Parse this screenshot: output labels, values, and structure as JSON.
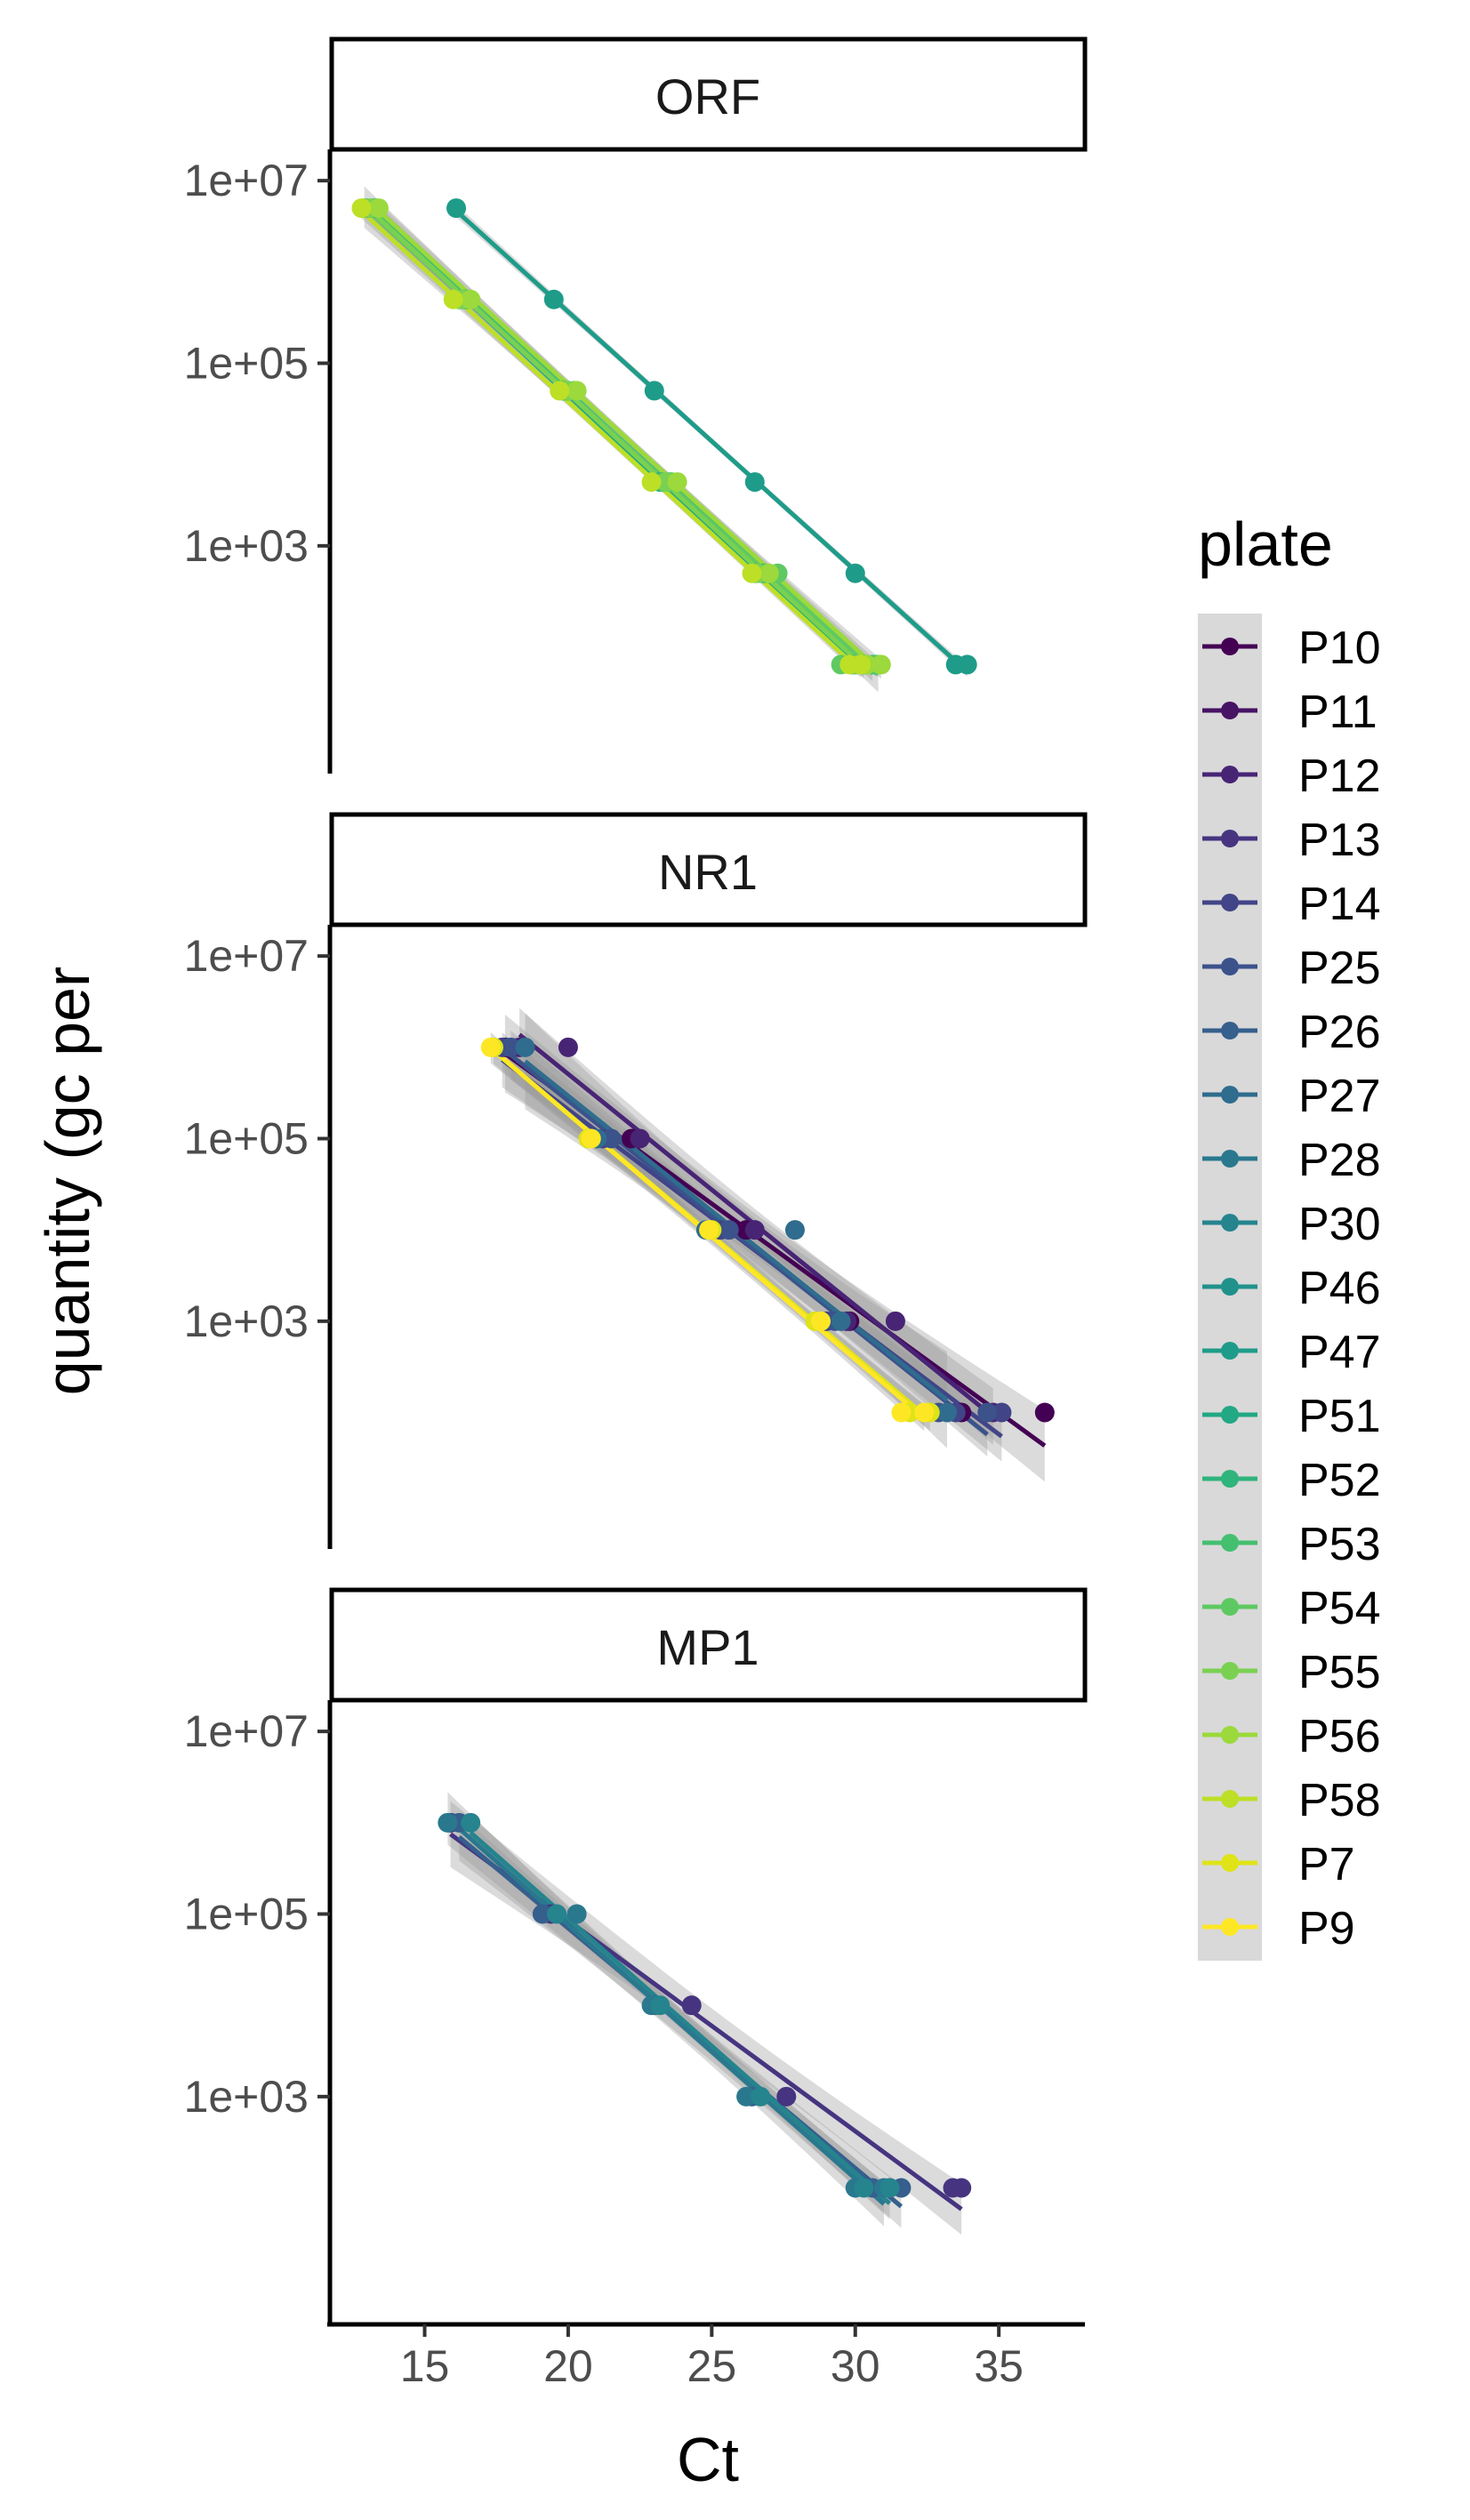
{
  "chart_data": {
    "type": "scatter",
    "facets": [
      "ORF",
      "NR1",
      "MP1"
    ],
    "xlabel": "Ct",
    "ylabel": "quantity (gc per",
    "x_ticks": [
      15,
      20,
      25,
      30,
      35
    ],
    "xlim": [
      11.7,
      38
    ],
    "y_ticks": [
      1000,
      100000,
      10000000
    ],
    "y_tick_labels": [
      "1e+03",
      "1e+05",
      "1e+07"
    ],
    "y_scale": "log10",
    "ylim": [
      3.2,
      22000000
    ],
    "grid": false,
    "legend": {
      "title": "plate",
      "position": "right",
      "entries": [
        "P10",
        "P11",
        "P12",
        "P13",
        "P14",
        "P25",
        "P26",
        "P27",
        "P28",
        "P30",
        "P46",
        "P47",
        "P51",
        "P52",
        "P53",
        "P54",
        "P55",
        "P56",
        "P58",
        "P7",
        "P9"
      ]
    },
    "colors": {
      "P10": "#440154",
      "P11": "#471365",
      "P12": "#482475",
      "P13": "#463480",
      "P14": "#414487",
      "P25": "#3b528b",
      "P26": "#355f8d",
      "P27": "#2f6c8e",
      "P28": "#2a788e",
      "P30": "#25848e",
      "P46": "#21918c",
      "P47": "#1e9c89",
      "P51": "#22a884",
      "P52": "#2fb47c",
      "P53": "#44bf70",
      "P54": "#5ec962",
      "P55": "#7ad151",
      "P56": "#9bd93c",
      "P58": "#bddf26",
      "P7": "#dfe318",
      "P9": "#fde725"
    },
    "series": [
      {
        "facet": "ORF",
        "plate": "P47",
        "x": [
          16.1,
          19.5,
          23.0,
          26.5,
          30.0,
          33.5,
          33.9
        ],
        "y": [
          5000000,
          500000,
          50000,
          5000,
          500,
          50,
          50
        ]
      },
      {
        "facet": "ORF",
        "plate": "P51",
        "x": [
          13.2,
          16.3,
          19.8,
          23.2,
          26.5,
          29.9,
          30.3
        ],
        "y": [
          5000000,
          500000,
          50000,
          5000,
          500,
          50,
          50
        ]
      },
      {
        "facet": "ORF",
        "plate": "P52",
        "x": [
          13.0,
          16.4,
          20.0,
          23.5,
          26.8,
          30.3,
          30.7
        ],
        "y": [
          5000000,
          500000,
          50000,
          5000,
          500,
          50,
          50
        ]
      },
      {
        "facet": "ORF",
        "plate": "P53",
        "x": [
          13.3,
          16.5,
          19.9,
          23.3,
          26.9,
          30.0,
          30.6
        ],
        "y": [
          5000000,
          500000,
          50000,
          5000,
          500,
          50,
          50
        ]
      },
      {
        "facet": "ORF",
        "plate": "P54",
        "x": [
          12.9,
          16.2,
          20.2,
          23.6,
          27.3,
          29.5,
          30.8
        ],
        "y": [
          5000000,
          500000,
          50000,
          5000,
          500,
          50,
          50
        ]
      },
      {
        "facet": "ORF",
        "plate": "P55",
        "x": [
          13.1,
          16.3,
          20.0,
          23.4,
          26.6,
          30.1,
          30.4
        ],
        "y": [
          5000000,
          500000,
          50000,
          5000,
          500,
          50,
          50
        ]
      },
      {
        "facet": "ORF",
        "plate": "P56",
        "x": [
          13.4,
          16.6,
          20.3,
          23.8,
          27.0,
          30.4,
          30.9
        ],
        "y": [
          5000000,
          500000,
          50000,
          5000,
          500,
          50,
          50
        ]
      },
      {
        "facet": "ORF",
        "plate": "P58",
        "x": [
          12.8,
          16.0,
          19.7,
          22.9,
          26.4,
          29.8,
          30.2
        ],
        "y": [
          5000000,
          500000,
          50000,
          5000,
          500,
          50,
          50
        ]
      },
      {
        "facet": "NR1",
        "plate": "P10",
        "x": [
          17.8,
          22.2,
          26.2,
          29.8,
          33.7,
          36.6
        ],
        "y": [
          1000000,
          100000,
          10000,
          1000,
          100,
          100
        ]
      },
      {
        "facet": "NR1",
        "plate": "P12",
        "x": [
          18.3,
          20.0,
          22.5,
          26.5,
          29.7,
          31.4,
          34.8
        ],
        "y": [
          1000000,
          1000000,
          100000,
          10000,
          1000,
          1000,
          100
        ]
      },
      {
        "facet": "NR1",
        "plate": "P14",
        "x": [
          17.7,
          21.2,
          25.3,
          29.0,
          33.5,
          35.1
        ],
        "y": [
          1000000,
          100000,
          10000,
          1000,
          100,
          100
        ]
      },
      {
        "facet": "NR1",
        "plate": "P25",
        "x": [
          18.0,
          21.5,
          25.6,
          29.3,
          32.9,
          34.6
        ],
        "y": [
          1000000,
          100000,
          10000,
          1000,
          100,
          100
        ]
      },
      {
        "facet": "NR1",
        "plate": "P27",
        "x": [
          18.5,
          21.0,
          24.8,
          27.9,
          29.5,
          33.2
        ],
        "y": [
          1000000,
          100000,
          10000,
          10000,
          1000,
          100
        ]
      },
      {
        "facet": "NR1",
        "plate": "P7",
        "x": [
          17.4,
          20.7,
          25.0,
          28.6,
          31.9,
          32.6
        ],
        "y": [
          1000000,
          100000,
          10000,
          1000,
          100,
          100
        ]
      },
      {
        "facet": "NR1",
        "plate": "P9",
        "x": [
          17.3,
          20.8,
          24.9,
          28.8,
          31.6,
          32.4
        ],
        "y": [
          1000000,
          100000,
          10000,
          1000,
          100,
          100
        ]
      },
      {
        "facet": "MP1",
        "plate": "P13",
        "x": [
          15.9,
          19.4,
          24.3,
          27.6,
          31.2,
          33.4,
          33.7
        ],
        "y": [
          1000000,
          100000,
          10000,
          1000,
          100,
          100,
          100
        ]
      },
      {
        "facet": "MP1",
        "plate": "P26",
        "x": [
          16.2,
          19.1,
          23.0,
          26.4,
          30.6,
          31.6
        ],
        "y": [
          1000000,
          100000,
          10000,
          1000,
          100,
          100
        ]
      },
      {
        "facet": "MP1",
        "plate": "P28",
        "x": [
          15.8,
          20.3,
          22.9,
          26.2,
          30.0,
          31.0
        ],
        "y": [
          1000000,
          100000,
          10000,
          1000,
          100,
          100
        ]
      },
      {
        "facet": "MP1",
        "plate": "P30",
        "x": [
          16.6,
          19.6,
          23.2,
          26.7,
          30.3,
          31.2
        ],
        "y": [
          1000000,
          100000,
          10000,
          1000,
          100,
          100
        ]
      }
    ]
  }
}
